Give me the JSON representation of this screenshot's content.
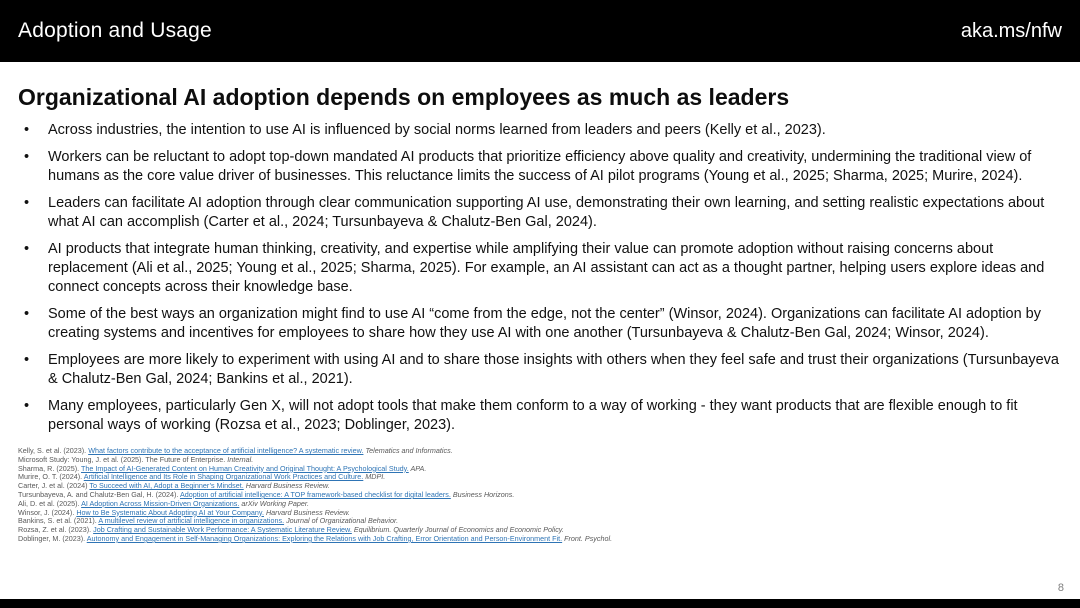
{
  "colors": {
    "bar_background": "#000000",
    "link_blue": "#2E74B5",
    "reference_gray": "#595959"
  },
  "header": {
    "title": "Adoption and Usage",
    "link": "aka.ms/nfw"
  },
  "slide": {
    "title": "Organizational AI adoption depends on employees as much as leaders",
    "bullet_char": "•",
    "bullets": [
      "Across industries, the intention to use AI is influenced by social norms learned from leaders and peers (Kelly et al., 2023).",
      "Workers can be reluctant to adopt top-down mandated AI products that prioritize efficiency above quality and creativity, undermining the traditional view of humans as the core value driver of businesses. This reluctance limits the success of AI pilot programs (Young et al., 2025; Sharma, 2025; Murire, 2024).",
      "Leaders can facilitate AI adoption through clear communication supporting AI use, demonstrating their own learning, and setting realistic expectations about what AI can accomplish (Carter et al., 2024; Tursunbayeva & Chalutz-Ben Gal, 2024).",
      "AI products that integrate human thinking, creativity, and expertise while amplifying their value can promote adoption without raising concerns about replacement (Ali et al., 2025; Young et al., 2025; Sharma, 2025). For example, an AI assistant can act as a thought partner, helping users explore ideas and connect concepts across their knowledge base.",
      "Some of the best ways an organization might find to use AI “come from the edge, not the center” (Winsor, 2024). Organizations can facilitate AI adoption by creating systems and incentives for employees to share how they use AI with one another (Tursunbayeva & Chalutz-Ben Gal, 2024; Winsor, 2024).",
      "Employees are more likely to experiment with using AI and to share those insights with others when they feel safe and trust their organizations (Tursunbayeva & Chalutz-Ben Gal, 2024; Bankins et al., 2021).",
      "Many employees, particularly Gen X, will not adopt tools that make them conform to a way of working - they want products that are flexible enough to fit personal ways of working (Rozsa et al., 2023; Doblinger, 2023)."
    ]
  },
  "references": [
    [
      {
        "text": "Kelly, S. et al. (2023). ",
        "style": "plain"
      },
      {
        "text": "What factors contribute to the acceptance of artificial intelligence?  A systematic review.",
        "style": "link"
      },
      {
        "text": " Telematics and Informatics.",
        "style": "italic"
      }
    ],
    [
      {
        "text": "Microsoft Study: Young, J. et al. (2025). The Future of Enterprise. ",
        "style": "plain"
      },
      {
        "text": "Internal.",
        "style": "italic"
      }
    ],
    [
      {
        "text": "Sharma, R. (2025). ",
        "style": "plain"
      },
      {
        "text": "The Impact of AI-Generated Content on Human Creativity and Original Thought: A Psychological Study.",
        "style": "link"
      },
      {
        "text": " APA.",
        "style": "italic"
      }
    ],
    [
      {
        "text": "Murire, O. T. (2024). ",
        "style": "plain"
      },
      {
        "text": "Artificial Intelligence and Its Role in Shaping Organizational Work Practices and Culture.",
        "style": "link"
      },
      {
        "text": " MDPI.",
        "style": "italic"
      }
    ],
    [
      {
        "text": "Carter, J. et al. (2024) ",
        "style": "plain"
      },
      {
        "text": "To Succeed with AI, Adopt a Beginner’s Mindset.",
        "style": "link"
      },
      {
        "text": " Harvard Business Review.",
        "style": "italic"
      }
    ],
    [
      {
        "text": "Tursunbayeva, A. and Chalutz-Ben Gal, H. (2024). ",
        "style": "plain"
      },
      {
        "text": "Adoption of artificial intelligence: A TOP framework-based checklist for digital leaders.",
        "style": "link"
      },
      {
        "text": " Business Horizons.",
        "style": "italic"
      }
    ],
    [
      {
        "text": "Ali, D. et al. (2025). ",
        "style": "plain"
      },
      {
        "text": "AI Adoption Across Mission-Driven Organizations.",
        "style": "link"
      },
      {
        "text": " arXiv Working Paper.",
        "style": "italic"
      }
    ],
    [
      {
        "text": "Winsor, J. (2024). ",
        "style": "plain"
      },
      {
        "text": "How to Be Systematic About Adopting AI at Your Company.",
        "style": "link"
      },
      {
        "text": " Harvard Business Review.",
        "style": "italic"
      }
    ],
    [
      {
        "text": "Bankins, S. et al. (2021). ",
        "style": "plain"
      },
      {
        "text": "A multilevel review of artificial intelligence in organizations.",
        "style": "link"
      },
      {
        "text": " Journal of Organizational Behavior.",
        "style": "italic"
      }
    ],
    [
      {
        "text": "Rozsa, Z. et al. (2023). ",
        "style": "plain"
      },
      {
        "text": "Job Crafting and Sustainable Work Performance: A Systematic Literature Review.",
        "style": "link"
      },
      {
        "text": " Equilibrium. Quarterly Journal of Economics and Economic Policy.",
        "style": "italic"
      }
    ],
    [
      {
        "text": "Doblinger, M. (2023). ",
        "style": "plain"
      },
      {
        "text": "Autonomy and Engagement in Self-Managing Organizations: Exploring the Relations with Job Crafting, Error Orientation and Person-Environment Fit.",
        "style": "link"
      },
      {
        "text": " Front. Psychol.",
        "style": "italic"
      }
    ]
  ],
  "footer": {
    "page_number": "8"
  }
}
